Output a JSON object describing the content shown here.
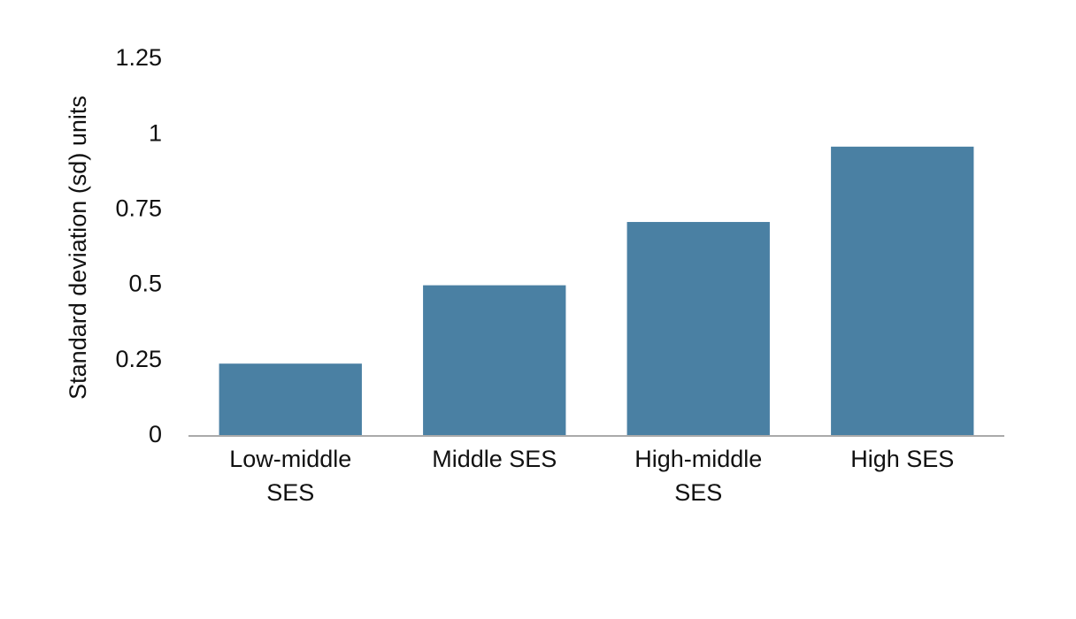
{
  "chart_data": {
    "type": "bar",
    "y_axis_label": "Standard deviation (sd) units",
    "categories": [
      "Low-middle SES",
      "Middle SES",
      "High-middle SES",
      "High SES"
    ],
    "values": [
      0.24,
      0.5,
      0.71,
      0.96
    ],
    "color": "#4a80a3",
    "ylim": [
      0,
      1.25
    ],
    "yticks": [
      0,
      0.25,
      0.5,
      0.75,
      1,
      1.25
    ],
    "grid": false
  }
}
